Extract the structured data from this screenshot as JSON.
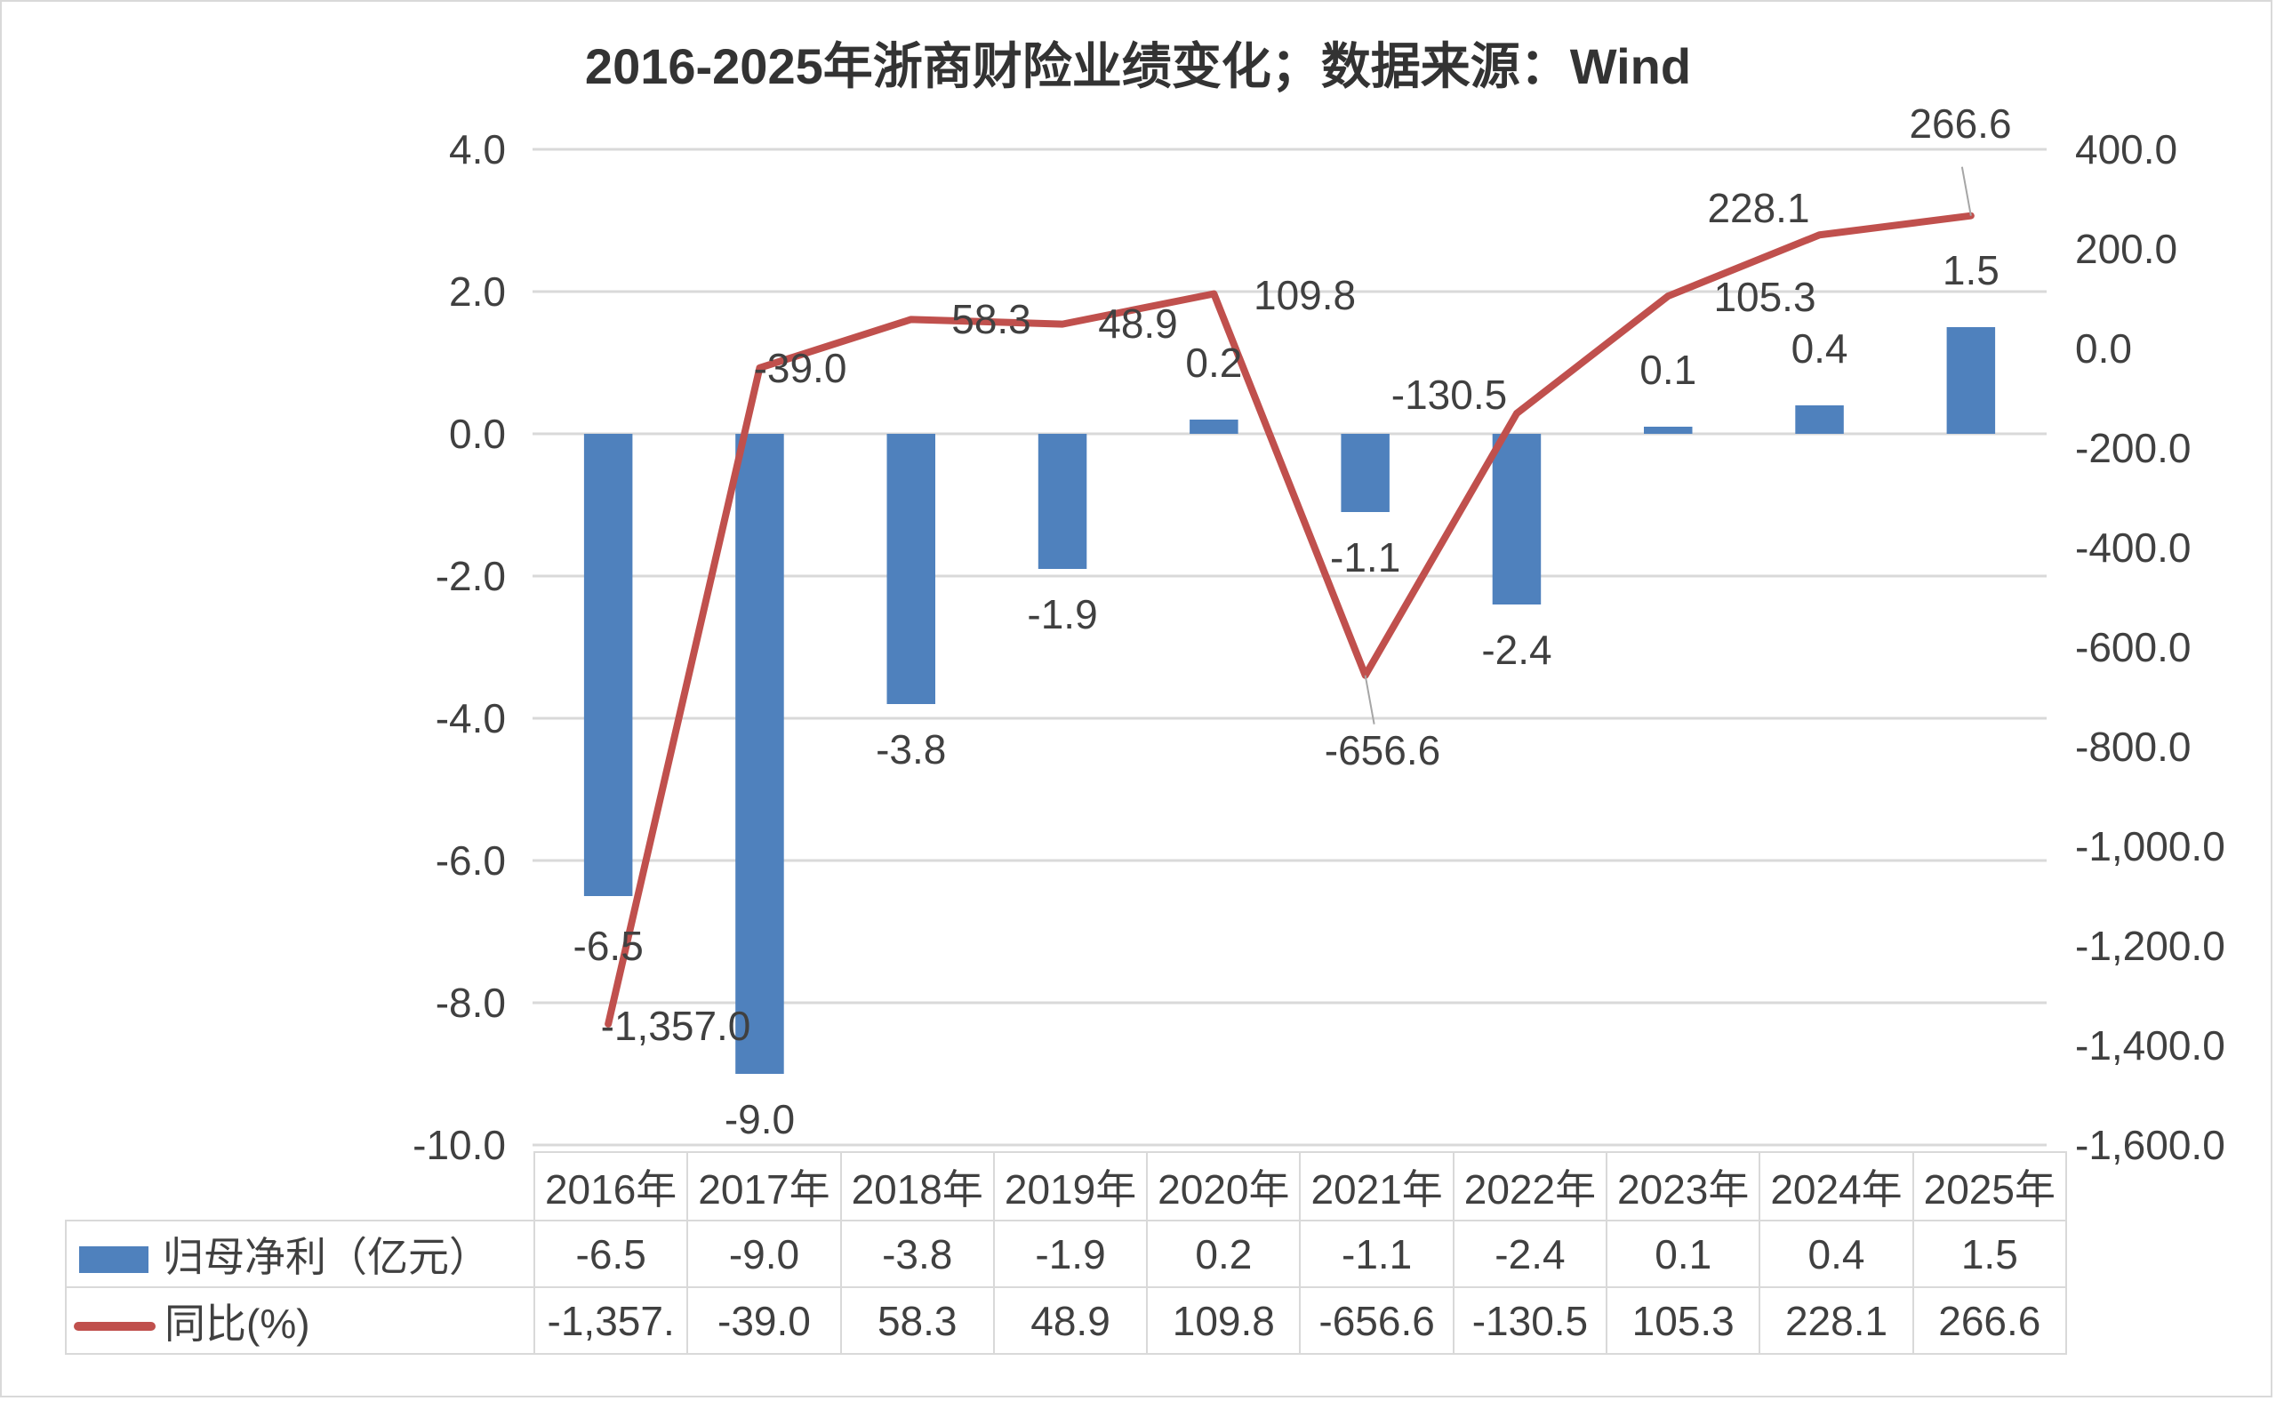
{
  "chart_data": {
    "type": "bar+line",
    "title": "2016-2025年浙商财险业绩变化；数据来源：Wind",
    "categories": [
      "2016年",
      "2017年",
      "2018年",
      "2019年",
      "2020年",
      "2021年",
      "2022年",
      "2023年",
      "2024年",
      "2025年"
    ],
    "series": [
      {
        "name": "归母净利（亿元）",
        "type": "bar",
        "axis": "left",
        "color": "#4f81bd",
        "values": [
          -6.5,
          -9.0,
          -3.8,
          -1.9,
          0.2,
          -1.1,
          -2.4,
          0.1,
          0.4,
          1.5
        ],
        "labels": [
          "-6.5",
          "-9.0",
          "-3.8",
          "-1.9",
          "0.2",
          "-1.1",
          "-2.4",
          "0.1",
          "0.4",
          "1.5"
        ]
      },
      {
        "name": "同比(%)",
        "type": "line",
        "axis": "right",
        "color": "#c0504d",
        "values": [
          -1357.0,
          -39.0,
          58.3,
          48.9,
          109.8,
          -656.6,
          -130.5,
          105.3,
          228.1,
          266.6
        ],
        "labels": [
          "-1,357.0",
          "-39.0",
          "58.3",
          "48.9",
          "109.8",
          "-656.6",
          "-130.5",
          "105.3",
          "228.1",
          "266.6"
        ],
        "table_labels": [
          "-1,357.",
          "-39.0",
          "58.3",
          "48.9",
          "109.8",
          "-656.6",
          "-130.5",
          "105.3",
          "228.1",
          "266.6"
        ]
      }
    ],
    "left_axis": {
      "ylim": [
        -10,
        4
      ],
      "ticks": [
        "4.0",
        "2.0",
        "0.0",
        "-2.0",
        "-4.0",
        "-6.0",
        "-8.0",
        "-10.0"
      ],
      "values": [
        4,
        2,
        0,
        -2,
        -4,
        -6,
        -8,
        -10
      ]
    },
    "right_axis": {
      "ylim": [
        -1600,
        400
      ],
      "ticks": [
        "400.0",
        "200.0",
        "0.0",
        "-200.0",
        "-400.0",
        "-600.0",
        "-800.0",
        "-1,000.0",
        "-1,200.0",
        "-1,400.0",
        "-1,600.0"
      ],
      "values": [
        400,
        200,
        0,
        -200,
        -400,
        -600,
        -800,
        -1000,
        -1200,
        -1400,
        -1600
      ]
    },
    "grid": true,
    "legend": "data-table-bottom"
  }
}
